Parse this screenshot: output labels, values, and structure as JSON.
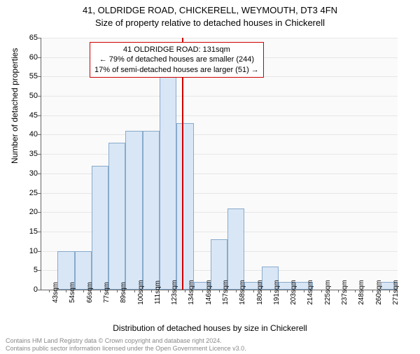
{
  "chart": {
    "type": "histogram",
    "title_line1": "41, OLDRIDGE ROAD, CHICKERELL, WEYMOUTH, DT3 4FN",
    "title_line2": "Size of property relative to detached houses in Chickerell",
    "title_fontsize": 13,
    "yaxis_label": "Number of detached properties",
    "xaxis_label": "Distribution of detached houses by size in Chickerell",
    "label_fontsize": 12,
    "background_color": "#ffffff",
    "plot_bg_color": "#fafafa",
    "grid_color": "#e6e6e6",
    "bar_fill": "#d9e6f5",
    "bar_border": "#88aacc",
    "marker_color": "#cc0000",
    "tick_fontsize": 11,
    "xtick_fontsize": 10,
    "ylim": [
      0,
      65
    ],
    "ytick_step": 5,
    "yticks": [
      0,
      5,
      10,
      15,
      20,
      25,
      30,
      35,
      40,
      45,
      50,
      55,
      60,
      65
    ],
    "xticks": [
      "43sqm",
      "54sqm",
      "66sqm",
      "77sqm",
      "89sqm",
      "100sqm",
      "111sqm",
      "123sqm",
      "134sqm",
      "146sqm",
      "157sqm",
      "168sqm",
      "180sqm",
      "191sqm",
      "203sqm",
      "214sqm",
      "225sqm",
      "237sqm",
      "248sqm",
      "260sqm",
      "271sqm"
    ],
    "nbars": 21,
    "values": [
      0,
      10,
      10,
      32,
      38,
      41,
      41,
      55,
      43,
      2,
      13,
      21,
      2,
      6,
      2,
      2,
      0,
      0,
      0,
      0,
      2
    ],
    "marker_bin_index": 8,
    "callout": {
      "line1": "41 OLDRIDGE ROAD: 131sqm",
      "line2": "← 79% of detached houses are smaller (244)",
      "line3": "17% of semi-detached houses are larger (51) →",
      "fontsize": 11
    },
    "footer_line1": "Contains HM Land Registry data © Crown copyright and database right 2024.",
    "footer_line2": "Contains public sector information licensed under the Open Government Licence v3.0.",
    "footer_color": "#888888",
    "footer_fontsize": 9
  }
}
